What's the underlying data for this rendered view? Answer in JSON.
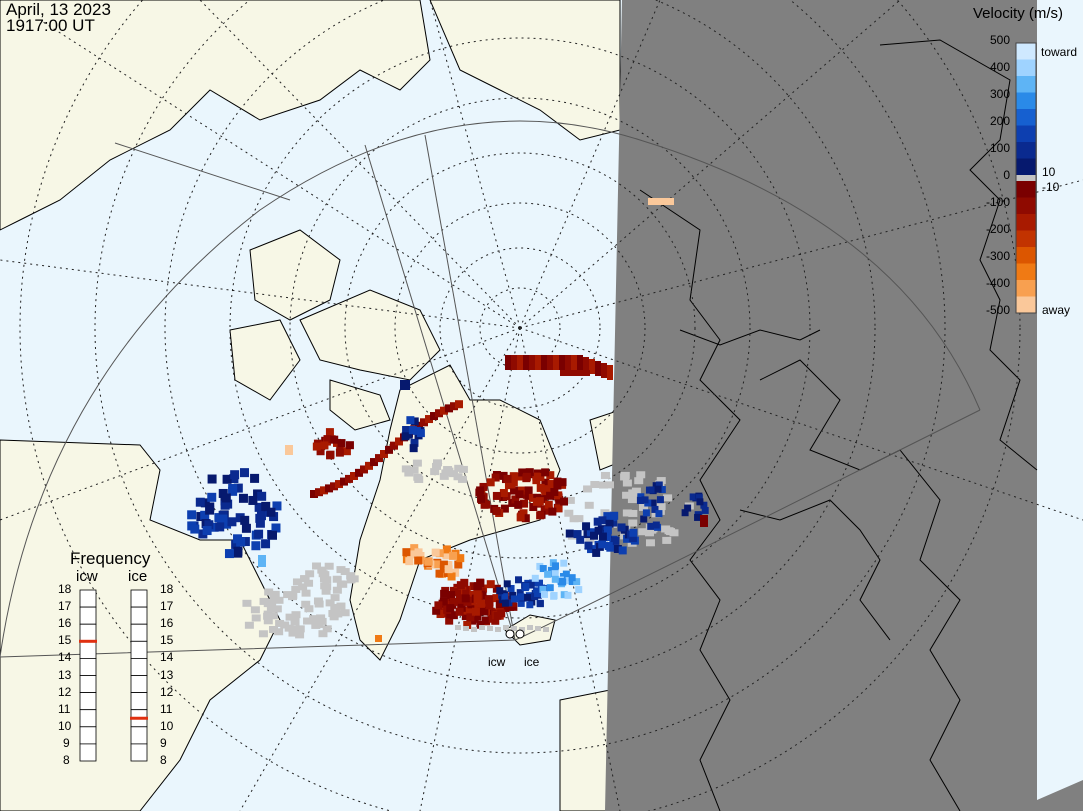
{
  "header": {
    "date": "April, 13 2023",
    "time": "1917:00 UT"
  },
  "map": {
    "ocean_color": "#eaf6fd",
    "land_color": "#f7f7e6",
    "night_color": "#808080",
    "radars": [
      "icw",
      "ice"
    ]
  },
  "velocity_scale": {
    "title": "Velocity (m/s)",
    "left_ticks": [
      "500",
      "400",
      "300",
      "200",
      "100",
      "0",
      "-100",
      "-200",
      "-300",
      "-400",
      "-500"
    ],
    "toward_label": "toward",
    "away_label": "away",
    "pos_threshold": "10",
    "neg_threshold": "-10",
    "colors_toward": [
      "#cfe9ff",
      "#9fd3ff",
      "#5eb4f5",
      "#2a8ae8",
      "#1660d0",
      "#0d3fb0",
      "#0a2a8f",
      "#06196e"
    ],
    "colors_away": [
      "#7a0000",
      "#8f0a00",
      "#a81a00",
      "#c23300",
      "#dc5600",
      "#f07a14",
      "#f8a050",
      "#fac89a"
    ],
    "gray_color": "#c4c4c4"
  },
  "frequency": {
    "title": "Frequency",
    "columns": [
      {
        "name": "icw",
        "value_mhz": 15
      },
      {
        "name": "ice",
        "value_mhz": 10.5
      }
    ],
    "ticks": [
      "18",
      "17",
      "16",
      "15",
      "14",
      "13",
      "12",
      "11",
      "10",
      "9",
      "8"
    ],
    "marker_color": "#e03010"
  }
}
